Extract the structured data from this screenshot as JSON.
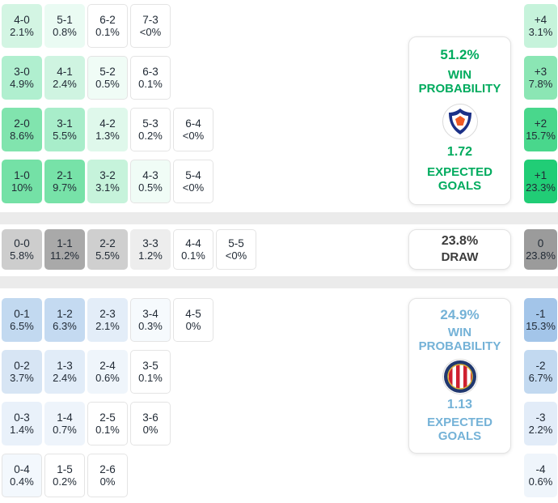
{
  "chart_data": {
    "type": "heatmap",
    "description": "Soccer match forecast: correct score probabilities, goal-margin probabilities, win/draw probabilities and expected goals",
    "sections": [
      {
        "id": "home",
        "outcome": "home win",
        "accent": "#00ab5e",
        "probability": "51.2%",
        "probability_label_lines": [
          "WIN",
          "PROBABILITY"
        ],
        "expected_goals": "1.72",
        "expected_goals_label_lines": [
          "EXPECTED",
          "GOALS"
        ],
        "rows": [
          [
            {
              "score": "4-0",
              "pct": "2.1%",
              "value": 2.1,
              "bg": "#d3f5e3"
            },
            {
              "score": "5-1",
              "pct": "0.8%",
              "value": 0.8,
              "bg": "#eafbf3"
            },
            {
              "score": "6-2",
              "pct": "0.1%",
              "value": 0.1,
              "bg": "#ffffff",
              "outlined": true
            },
            {
              "score": "7-3",
              "pct": "<0%",
              "value": 0,
              "bg": "#ffffff",
              "outlined": true
            }
          ],
          [
            {
              "score": "3-0",
              "pct": "4.9%",
              "value": 4.9,
              "bg": "#b0efcf"
            },
            {
              "score": "4-1",
              "pct": "2.4%",
              "value": 2.4,
              "bg": "#cff4e1"
            },
            {
              "score": "5-2",
              "pct": "0.5%",
              "value": 0.5,
              "bg": "#f0fcf6",
              "outlined": true
            },
            {
              "score": "6-3",
              "pct": "0.1%",
              "value": 0.1,
              "bg": "#ffffff",
              "outlined": true
            }
          ],
          [
            {
              "score": "2-0",
              "pct": "8.6%",
              "value": 8.6,
              "bg": "#81e4ae"
            },
            {
              "score": "3-1",
              "pct": "5.5%",
              "value": 5.5,
              "bg": "#a8edca"
            },
            {
              "score": "4-2",
              "pct": "1.3%",
              "value": 1.3,
              "bg": "#dff8eb"
            },
            {
              "score": "5-3",
              "pct": "0.2%",
              "value": 0.2,
              "bg": "#ffffff",
              "outlined": true
            },
            {
              "score": "6-4",
              "pct": "<0%",
              "value": 0,
              "bg": "#ffffff",
              "outlined": true
            }
          ],
          [
            {
              "score": "1-0",
              "pct": "10%",
              "value": 10,
              "bg": "#74e1a6"
            },
            {
              "score": "2-1",
              "pct": "9.7%",
              "value": 9.7,
              "bg": "#77e2a8"
            },
            {
              "score": "3-2",
              "pct": "3.1%",
              "value": 3.1,
              "bg": "#c6f3db"
            },
            {
              "score": "4-3",
              "pct": "0.5%",
              "value": 0.5,
              "bg": "#f0fcf6",
              "outlined": true
            },
            {
              "score": "5-4",
              "pct": "<0%",
              "value": 0,
              "bg": "#ffffff",
              "outlined": true
            }
          ]
        ],
        "margins": [
          {
            "margin": "+4",
            "pct": "3.1%",
            "value": 3.1,
            "bg": "#c6f3db"
          },
          {
            "margin": "+3",
            "pct": "7.8%",
            "value": 7.8,
            "bg": "#8be6b4"
          },
          {
            "margin": "+2",
            "pct": "15.7%",
            "value": 15.7,
            "bg": "#49d78c"
          },
          {
            "margin": "+1",
            "pct": "23.3%",
            "value": 23.3,
            "bg": "#21cd76"
          }
        ]
      },
      {
        "id": "draw",
        "outcome": "draw",
        "accent": "#3b3b3b",
        "probability": "23.8%",
        "probability_label_lines": [
          "DRAW"
        ],
        "rows": [
          [
            {
              "score": "0-0",
              "pct": "5.8%",
              "value": 5.8,
              "bg": "#cdcdcd"
            },
            {
              "score": "1-1",
              "pct": "11.2%",
              "value": 11.2,
              "bg": "#a9a9a9"
            },
            {
              "score": "2-2",
              "pct": "5.5%",
              "value": 5.5,
              "bg": "#cfcfcf"
            },
            {
              "score": "3-3",
              "pct": "1.2%",
              "value": 1.2,
              "bg": "#ededed"
            },
            {
              "score": "4-4",
              "pct": "0.1%",
              "value": 0.1,
              "bg": "#ffffff",
              "outlined": true
            },
            {
              "score": "5-5",
              "pct": "<0%",
              "value": 0,
              "bg": "#ffffff",
              "outlined": true
            }
          ]
        ],
        "margins": [
          {
            "margin": "0",
            "pct": "23.8%",
            "value": 23.8,
            "bg": "#9b9b9b"
          }
        ]
      },
      {
        "id": "away",
        "outcome": "away win",
        "accent": "#74b2d7",
        "probability": "24.9%",
        "probability_label_lines": [
          "WIN",
          "PROBABILITY"
        ],
        "expected_goals": "1.13",
        "expected_goals_label_lines": [
          "EXPECTED",
          "GOALS"
        ],
        "rows": [
          [
            {
              "score": "0-1",
              "pct": "6.5%",
              "value": 6.5,
              "bg": "#c2d9f0"
            },
            {
              "score": "1-2",
              "pct": "6.3%",
              "value": 6.3,
              "bg": "#c4daf1"
            },
            {
              "score": "2-3",
              "pct": "2.1%",
              "value": 2.1,
              "bg": "#e3edf8"
            },
            {
              "score": "3-4",
              "pct": "0.3%",
              "value": 0.3,
              "bg": "#f6fafd",
              "outlined": true
            },
            {
              "score": "4-5",
              "pct": "0%",
              "value": 0,
              "bg": "#ffffff",
              "outlined": true
            }
          ],
          [
            {
              "score": "0-2",
              "pct": "3.7%",
              "value": 3.7,
              "bg": "#d7e5f4"
            },
            {
              "score": "1-3",
              "pct": "2.4%",
              "value": 2.4,
              "bg": "#e1ecf8"
            },
            {
              "score": "2-4",
              "pct": "0.6%",
              "value": 0.6,
              "bg": "#eff5fb"
            },
            {
              "score": "3-5",
              "pct": "0.1%",
              "value": 0.1,
              "bg": "#ffffff",
              "outlined": true
            }
          ],
          [
            {
              "score": "0-3",
              "pct": "1.4%",
              "value": 1.4,
              "bg": "#e9f1fa"
            },
            {
              "score": "1-4",
              "pct": "0.7%",
              "value": 0.7,
              "bg": "#eef4fb"
            },
            {
              "score": "2-5",
              "pct": "0.1%",
              "value": 0.1,
              "bg": "#ffffff",
              "outlined": true
            },
            {
              "score": "3-6",
              "pct": "0%",
              "value": 0,
              "bg": "#ffffff",
              "outlined": true
            }
          ],
          [
            {
              "score": "0-4",
              "pct": "0.4%",
              "value": 0.4,
              "bg": "#f3f8fd",
              "outlined": true
            },
            {
              "score": "1-5",
              "pct": "0.2%",
              "value": 0.2,
              "bg": "#ffffff",
              "outlined": true
            },
            {
              "score": "2-6",
              "pct": "0%",
              "value": 0,
              "bg": "#ffffff",
              "outlined": true
            }
          ]
        ],
        "margins": [
          {
            "margin": "-1",
            "pct": "15.3%",
            "value": 15.3,
            "bg": "#a3c5e9"
          },
          {
            "margin": "-2",
            "pct": "6.7%",
            "value": 6.7,
            "bg": "#c2d9f0"
          },
          {
            "margin": "-3",
            "pct": "2.2%",
            "value": 2.2,
            "bg": "#e2ecf8"
          },
          {
            "margin": "-4",
            "pct": "0.6%",
            "value": 0.6,
            "bg": "#eff5fb"
          }
        ]
      }
    ]
  }
}
